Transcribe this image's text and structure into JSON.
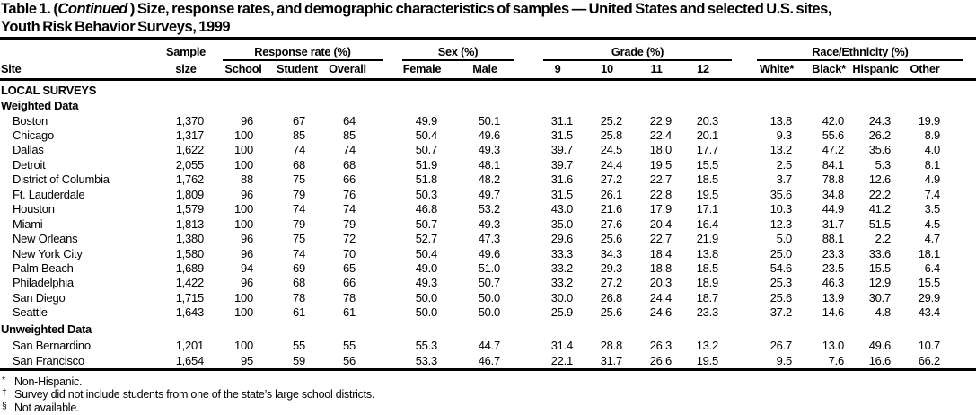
{
  "title": {
    "line1_pre": "Table 1. (",
    "continued": "Continued",
    "line1_post": " ) Size, response rates, and demographic characteristics of samples — United States and selected U.S. sites,",
    "line2": "Youth Risk Behavior Surveys, 1999"
  },
  "header": {
    "site": "Site",
    "sample_line1": "Sample",
    "sample_line2": "size",
    "groups": [
      {
        "label": "Response rate (%)"
      },
      {
        "label": "Sex (%)"
      },
      {
        "label": "Grade (%)"
      },
      {
        "label": "Race/Ethnicity (%)"
      }
    ],
    "columns": [
      "School",
      "Student",
      "Overall",
      "Female",
      "Male",
      "9",
      "10",
      "11",
      "12",
      "White*",
      "Black*",
      "Hispanic",
      "Other"
    ]
  },
  "sections": [
    {
      "label": "LOCAL SURVEYS"
    },
    {
      "label": "Weighted Data",
      "rows": [
        {
          "site": "Boston",
          "values": [
            "1,370",
            "96",
            "67",
            "64",
            "49.9",
            "50.1",
            "31.1",
            "25.2",
            "22.9",
            "20.3",
            "13.8",
            "42.0",
            "24.3",
            "19.9"
          ]
        },
        {
          "site": "Chicago",
          "values": [
            "1,317",
            "100",
            "85",
            "85",
            "50.4",
            "49.6",
            "31.5",
            "25.8",
            "22.4",
            "20.1",
            "9.3",
            "55.6",
            "26.2",
            "8.9"
          ]
        },
        {
          "site": "Dallas",
          "values": [
            "1,622",
            "100",
            "74",
            "74",
            "50.7",
            "49.3",
            "39.7",
            "24.5",
            "18.0",
            "17.7",
            "13.2",
            "47.2",
            "35.6",
            "4.0"
          ]
        },
        {
          "site": "Detroit",
          "values": [
            "2,055",
            "100",
            "68",
            "68",
            "51.9",
            "48.1",
            "39.7",
            "24.4",
            "19.5",
            "15.5",
            "2.5",
            "84.1",
            "5.3",
            "8.1"
          ]
        },
        {
          "site": "District of Columbia",
          "values": [
            "1,762",
            "88",
            "75",
            "66",
            "51.8",
            "48.2",
            "31.6",
            "27.2",
            "22.7",
            "18.5",
            "3.7",
            "78.8",
            "12.6",
            "4.9"
          ]
        },
        {
          "site": "Ft. Lauderdale",
          "values": [
            "1,809",
            "96",
            "79",
            "76",
            "50.3",
            "49.7",
            "31.5",
            "26.1",
            "22.8",
            "19.5",
            "35.6",
            "34.8",
            "22.2",
            "7.4"
          ]
        },
        {
          "site": "Houston",
          "values": [
            "1,579",
            "100",
            "74",
            "74",
            "46.8",
            "53.2",
            "43.0",
            "21.6",
            "17.9",
            "17.1",
            "10.3",
            "44.9",
            "41.2",
            "3.5"
          ]
        },
        {
          "site": "Miami",
          "values": [
            "1,813",
            "100",
            "79",
            "79",
            "50.7",
            "49.3",
            "35.0",
            "27.6",
            "20.4",
            "16.4",
            "12.3",
            "31.7",
            "51.5",
            "4.5"
          ]
        },
        {
          "site": "New Orleans",
          "values": [
            "1,380",
            "96",
            "75",
            "72",
            "52.7",
            "47.3",
            "29.6",
            "25.6",
            "22.7",
            "21.9",
            "5.0",
            "88.1",
            "2.2",
            "4.7"
          ]
        },
        {
          "site": "New York City",
          "values": [
            "1,580",
            "96",
            "74",
            "70",
            "50.4",
            "49.6",
            "33.3",
            "34.3",
            "18.4",
            "13.8",
            "25.0",
            "23.3",
            "33.6",
            "18.1"
          ]
        },
        {
          "site": "Palm Beach",
          "values": [
            "1,689",
            "94",
            "69",
            "65",
            "49.0",
            "51.0",
            "33.2",
            "29.3",
            "18.8",
            "18.5",
            "54.6",
            "23.5",
            "15.5",
            "6.4"
          ]
        },
        {
          "site": "Philadelphia",
          "values": [
            "1,422",
            "96",
            "68",
            "66",
            "49.3",
            "50.7",
            "33.2",
            "27.2",
            "20.3",
            "18.9",
            "25.3",
            "46.3",
            "12.9",
            "15.5"
          ]
        },
        {
          "site": "San Diego",
          "values": [
            "1,715",
            "100",
            "78",
            "78",
            "50.0",
            "50.0",
            "30.0",
            "26.8",
            "24.4",
            "18.7",
            "25.6",
            "13.9",
            "30.7",
            "29.9"
          ]
        },
        {
          "site": "Seattle",
          "values": [
            "1,643",
            "100",
            "61",
            "61",
            "50.0",
            "50.0",
            "25.9",
            "25.6",
            "24.6",
            "23.3",
            "37.2",
            "14.6",
            "4.8",
            "43.4"
          ]
        }
      ]
    },
    {
      "label": "Unweighted Data",
      "rows": [
        {
          "site": "San Bernardino",
          "values": [
            "1,201",
            "100",
            "55",
            "55",
            "55.3",
            "44.7",
            "31.4",
            "28.8",
            "26.3",
            "13.2",
            "26.7",
            "13.0",
            "49.6",
            "10.7"
          ]
        },
        {
          "site": "San Francisco",
          "values": [
            "1,654",
            "95",
            "59",
            "56",
            "53.3",
            "46.7",
            "22.1",
            "31.7",
            "26.6",
            "19.5",
            "9.5",
            "7.6",
            "16.6",
            "66.2"
          ]
        }
      ]
    }
  ],
  "footnotes": [
    {
      "symbol": "*",
      "text": "Non-Hispanic."
    },
    {
      "symbol": "†",
      "text": "Survey did not include students from one of the state’s large school districts."
    },
    {
      "symbol": "§",
      "text": "Not available."
    }
  ]
}
